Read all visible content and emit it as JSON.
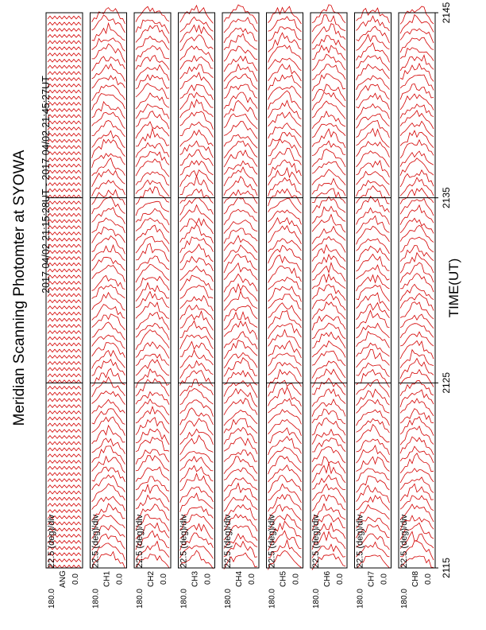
{
  "chart_data": {
    "type": "line",
    "title": "Meridian Scanning Photomter at SYOWA",
    "subtitle": "2017 04/02 21:15:28UT - 2017 04/02 21:45:27UT",
    "xlabel": "TIME(UT)",
    "x_ticks": [
      "2115",
      "2125",
      "2135",
      "2145"
    ],
    "xlim": [
      2115,
      2145
    ],
    "colors": {
      "trace": "#d40000",
      "frame": "#000000"
    },
    "panels": [
      {
        "ylabel": "ANG",
        "scale": "22.5 (deg)/div",
        "ymax": "180.0",
        "ymin": "0.0",
        "kind": "angle"
      },
      {
        "ylabel": "CH1",
        "scale": "22.5 (deg)/div",
        "ymax": "180.0",
        "ymin": "0.0",
        "kind": "scan"
      },
      {
        "ylabel": "CH2",
        "scale": "22.5 (deg)/div",
        "ymax": "180.0",
        "ymin": "0.0",
        "kind": "scan"
      },
      {
        "ylabel": "CH3",
        "scale": "22.5 (deg)/div",
        "ymax": "180.0",
        "ymin": "0.0",
        "kind": "scan"
      },
      {
        "ylabel": "CH4",
        "scale": "22.5 (deg)/div",
        "ymax": "180.0",
        "ymin": "0.0",
        "kind": "scan"
      },
      {
        "ylabel": "CH5",
        "scale": "22.5 (deg)/div",
        "ymax": "180.0",
        "ymin": "0.0",
        "kind": "scan"
      },
      {
        "ylabel": "CH6",
        "scale": "22.5 (deg)/div",
        "ymax": "180.0",
        "ymin": "0.0",
        "kind": "scan"
      },
      {
        "ylabel": "CH7",
        "scale": "22.5 (deg)/div",
        "ymax": "180.0",
        "ymin": "0.0",
        "kind": "scan"
      },
      {
        "ylabel": "CH8",
        "scale": "22.5 (deg)/div",
        "ymax": "180.0",
        "ymin": "0.0",
        "kind": "scan"
      }
    ]
  }
}
